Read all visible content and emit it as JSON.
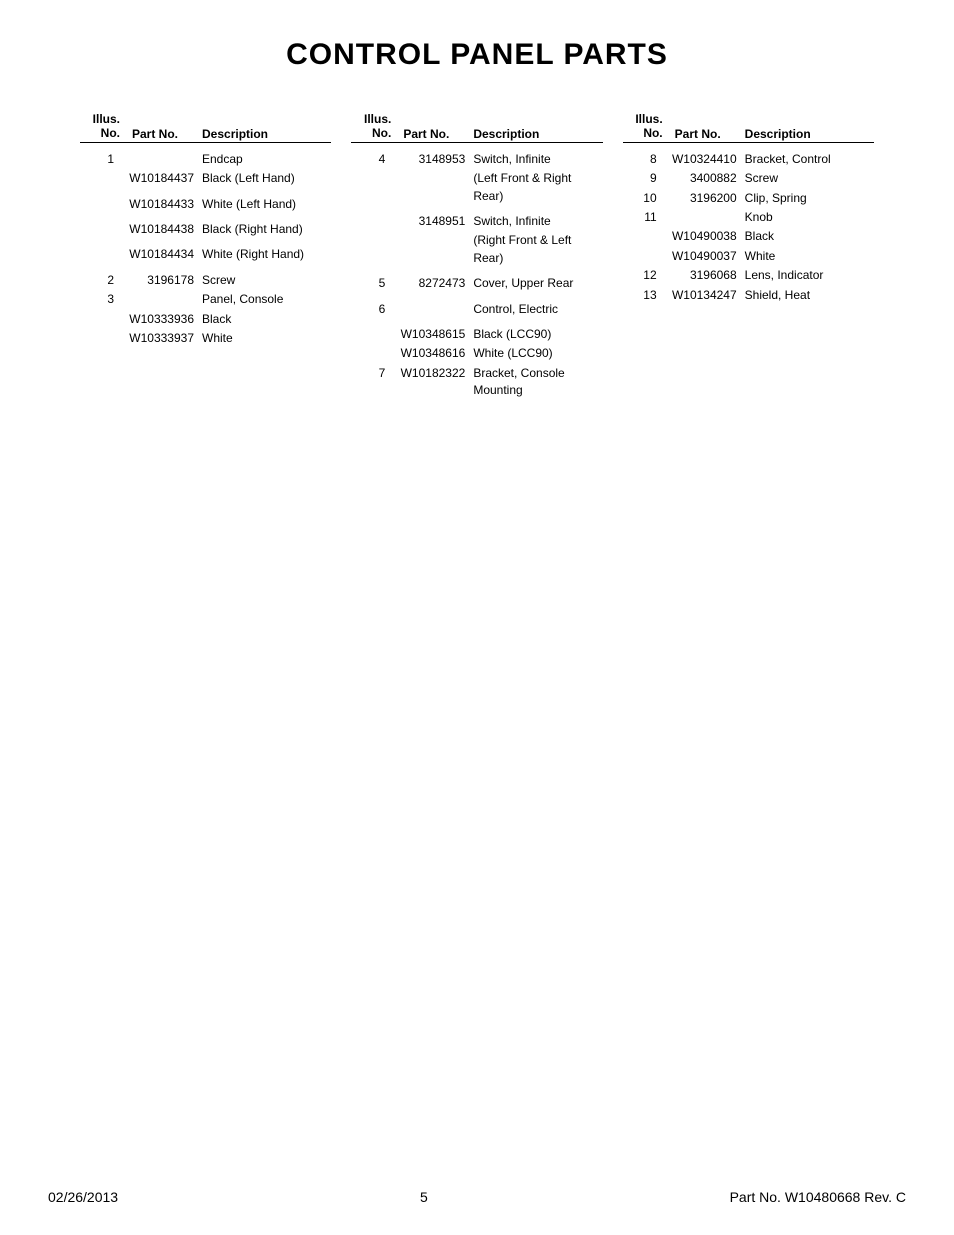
{
  "title": "CONTROL PANEL PARTS",
  "headers": {
    "illus_line1": "Illus.",
    "illus_line2": "No.",
    "part": "Part No.",
    "desc": "Description"
  },
  "columns": [
    {
      "rows": [
        {
          "illus": "1",
          "part": "",
          "desc": "Endcap"
        },
        {
          "illus": "",
          "part": "W10184437",
          "desc": "Black (Left Hand)",
          "spacer_after": true
        },
        {
          "illus": "",
          "part": "W10184433",
          "desc": "White (Left Hand)",
          "spacer_after": true
        },
        {
          "illus": "",
          "part": "W10184438",
          "desc": "Black (Right Hand)",
          "spacer_after": true
        },
        {
          "illus": "",
          "part": "W10184434",
          "desc": "White (Right Hand)",
          "spacer_after": true
        },
        {
          "illus": "2",
          "part": "3196178",
          "desc": "Screw"
        },
        {
          "illus": "3",
          "part": "",
          "desc": "Panel, Console"
        },
        {
          "illus": "",
          "part": "W10333936",
          "desc": "Black"
        },
        {
          "illus": "",
          "part": "W10333937",
          "desc": "White"
        }
      ]
    },
    {
      "rows": [
        {
          "illus": "4",
          "part": "3148953",
          "desc": "Switch, Infinite"
        },
        {
          "illus": "",
          "part": "",
          "desc": "(Left Front & Right Rear)",
          "spacer_after": true
        },
        {
          "illus": "",
          "part": "3148951",
          "desc": "Switch, Infinite"
        },
        {
          "illus": "",
          "part": "",
          "desc": "(Right Front & Left Rear)",
          "spacer_after": true
        },
        {
          "illus": "5",
          "part": "8272473",
          "desc": "Cover, Upper Rear",
          "spacer_after": true
        },
        {
          "illus": "6",
          "part": "",
          "desc": "Control, Electric",
          "spacer_after": true
        },
        {
          "illus": "",
          "part": "W10348615",
          "desc": "Black (LCC90)"
        },
        {
          "illus": "",
          "part": "W10348616",
          "desc": "White (LCC90)"
        },
        {
          "illus": "7",
          "part": "W10182322",
          "desc": "Bracket, Console Mounting"
        }
      ]
    },
    {
      "rows": [
        {
          "illus": "8",
          "part": "W10324410",
          "desc": "Bracket, Control"
        },
        {
          "illus": "9",
          "part": "3400882",
          "desc": "Screw"
        },
        {
          "illus": "10",
          "part": "3196200",
          "desc": "Clip, Spring"
        },
        {
          "illus": "11",
          "part": "",
          "desc": "Knob"
        },
        {
          "illus": "",
          "part": "W10490038",
          "desc": "Black"
        },
        {
          "illus": "",
          "part": "W10490037",
          "desc": "White"
        },
        {
          "illus": "12",
          "part": "3196068",
          "desc": "Lens, Indicator"
        },
        {
          "illus": "13",
          "part": "W10134247",
          "desc": "Shield, Heat"
        }
      ]
    }
  ],
  "footer": {
    "date": "02/26/2013",
    "page": "5",
    "partno": "Part No.  W10480668   Rev.  C"
  }
}
